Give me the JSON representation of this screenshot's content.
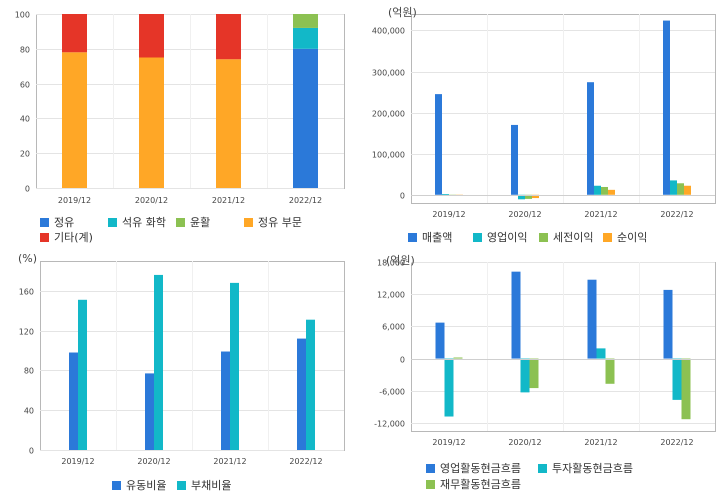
{
  "colors": {
    "blue": "#2b79d9",
    "teal": "#12b8c8",
    "green": "#8cc152",
    "orange": "#ffa726",
    "red": "#e53528",
    "grid": "#e4e4e4",
    "frame": "#b8b8b8"
  },
  "chart_data": [
    {
      "type": "bar",
      "stacked": true,
      "categories": [
        "2019/12",
        "2020/12",
        "2021/12",
        "2022/12"
      ],
      "ylim": [
        0,
        100
      ],
      "yticks": [
        0,
        20,
        40,
        60,
        80,
        100
      ],
      "ytick_labels": [
        "0",
        "20",
        "40",
        "60",
        "80",
        "100"
      ],
      "unit": "",
      "series": [
        {
          "name": "정유",
          "color": "#2b79d9",
          "values": [
            0,
            0,
            0,
            80
          ]
        },
        {
          "name": "석유 화학",
          "color": "#12b8c8",
          "values": [
            0,
            0,
            0,
            12
          ]
        },
        {
          "name": "윤활",
          "color": "#8cc152",
          "values": [
            0,
            0,
            0,
            8
          ]
        },
        {
          "name": "정유 부문",
          "color": "#ffa726",
          "values": [
            78,
            75,
            74,
            0
          ]
        },
        {
          "name": "기타(계)",
          "color": "#e53528",
          "values": [
            22,
            25,
            26,
            0
          ]
        }
      ]
    },
    {
      "type": "bar",
      "categories": [
        "2019/12",
        "2020/12",
        "2021/12",
        "2022/12"
      ],
      "ylim": [
        -20000,
        440000
      ],
      "yticks": [
        0,
        100000,
        200000,
        300000,
        400000
      ],
      "ytick_labels": [
        "0",
        "100,000",
        "200,000",
        "300,000",
        "400,000"
      ],
      "unit": "(억원)",
      "series": [
        {
          "name": "매출액",
          "color": "#2b79d9",
          "values": [
            245000,
            170000,
            274000,
            424000
          ]
        },
        {
          "name": "영업이익",
          "color": "#12b8c8",
          "values": [
            1500,
            -11000,
            22000,
            35000
          ]
        },
        {
          "name": "세전이익",
          "color": "#8cc152",
          "values": [
            -500,
            -10000,
            19000,
            28000
          ]
        },
        {
          "name": "순이익",
          "color": "#ffa726",
          "values": [
            -300,
            -8000,
            12000,
            22000
          ]
        }
      ]
    },
    {
      "type": "bar",
      "categories": [
        "2019/12",
        "2020/12",
        "2021/12",
        "2022/12"
      ],
      "ylim": [
        0,
        190
      ],
      "yticks": [
        0,
        40,
        80,
        120,
        160
      ],
      "ytick_labels": [
        "0",
        "40",
        "80",
        "120",
        "160"
      ],
      "unit": "(%)",
      "series": [
        {
          "name": "유동비율",
          "color": "#2b79d9",
          "values": [
            98,
            77,
            99,
            112
          ]
        },
        {
          "name": "부채비율",
          "color": "#12b8c8",
          "values": [
            151,
            176,
            168,
            131
          ]
        }
      ]
    },
    {
      "type": "bar",
      "categories": [
        "2019/12",
        "2020/12",
        "2021/12",
        "2022/12"
      ],
      "ylim": [
        -13500,
        18000
      ],
      "yticks": [
        -12000,
        -6000,
        0,
        6000,
        12000,
        18000
      ],
      "ytick_labels": [
        "-12,000",
        "-6,000",
        "0",
        "6,000",
        "12,000",
        "18,000"
      ],
      "unit": "(억원)",
      "series": [
        {
          "name": "영업활동현금흐름",
          "color": "#2b79d9",
          "values": [
            6700,
            16200,
            14700,
            12800
          ]
        },
        {
          "name": "투자활동현금흐름",
          "color": "#12b8c8",
          "values": [
            -10800,
            -6300,
            1900,
            -7700
          ]
        },
        {
          "name": "재무활동현금흐름",
          "color": "#8cc152",
          "values": [
            200,
            -5500,
            -4700,
            -11300
          ]
        }
      ]
    }
  ]
}
